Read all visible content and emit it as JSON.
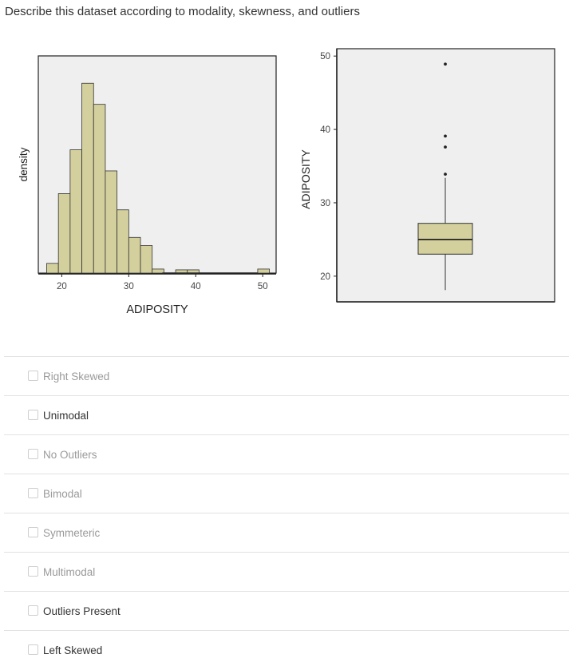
{
  "question": "Describe this dataset according to modality, skewness, and outliers",
  "colors": {
    "fill": "#d4d09e",
    "stroke": "#333333",
    "panel": "#efefef"
  },
  "chart_data": [
    {
      "type": "bar",
      "subtype": "histogram",
      "xlabel": "ADIPOSITY",
      "ylabel": "density",
      "xlim": [
        16.5,
        52
      ],
      "x_ticks": [
        20,
        30,
        40,
        50
      ],
      "bin_width": 1.75,
      "bins_start": [
        17.75,
        19.5,
        21.25,
        23.0,
        24.75,
        26.5,
        28.25,
        30.0,
        31.75,
        33.5,
        35.25,
        37.0,
        38.75,
        40.5,
        42.25,
        44.0,
        45.75,
        47.5,
        49.25
      ],
      "values": [
        0.012,
        0.098,
        0.152,
        0.234,
        0.208,
        0.126,
        0.078,
        0.044,
        0.034,
        0.005,
        0,
        0.004,
        0.004,
        0,
        0,
        0,
        0,
        0,
        0.005
      ],
      "ylim": [
        0,
        0.25
      ]
    },
    {
      "type": "boxplot",
      "ylabel": "ADIPOSITY",
      "y_ticks": [
        20,
        30,
        40,
        50
      ],
      "ylim": [
        16.5,
        51
      ],
      "whisker_low": 18.1,
      "q1": 23,
      "median": 25,
      "q3": 27.2,
      "whisker_high": 33.4,
      "outliers": [
        33.9,
        37.6,
        39.1,
        48.9
      ]
    }
  ],
  "options": [
    {
      "label": "Right Skewed",
      "strong": false
    },
    {
      "label": "Unimodal",
      "strong": true
    },
    {
      "label": "No Outliers",
      "strong": false
    },
    {
      "label": "Bimodal",
      "strong": false
    },
    {
      "label": "Symmeteric",
      "strong": false
    },
    {
      "label": "Multimodal",
      "strong": false
    },
    {
      "label": "Outliers Present",
      "strong": true
    },
    {
      "label": "Left Skewed",
      "strong": true
    }
  ]
}
